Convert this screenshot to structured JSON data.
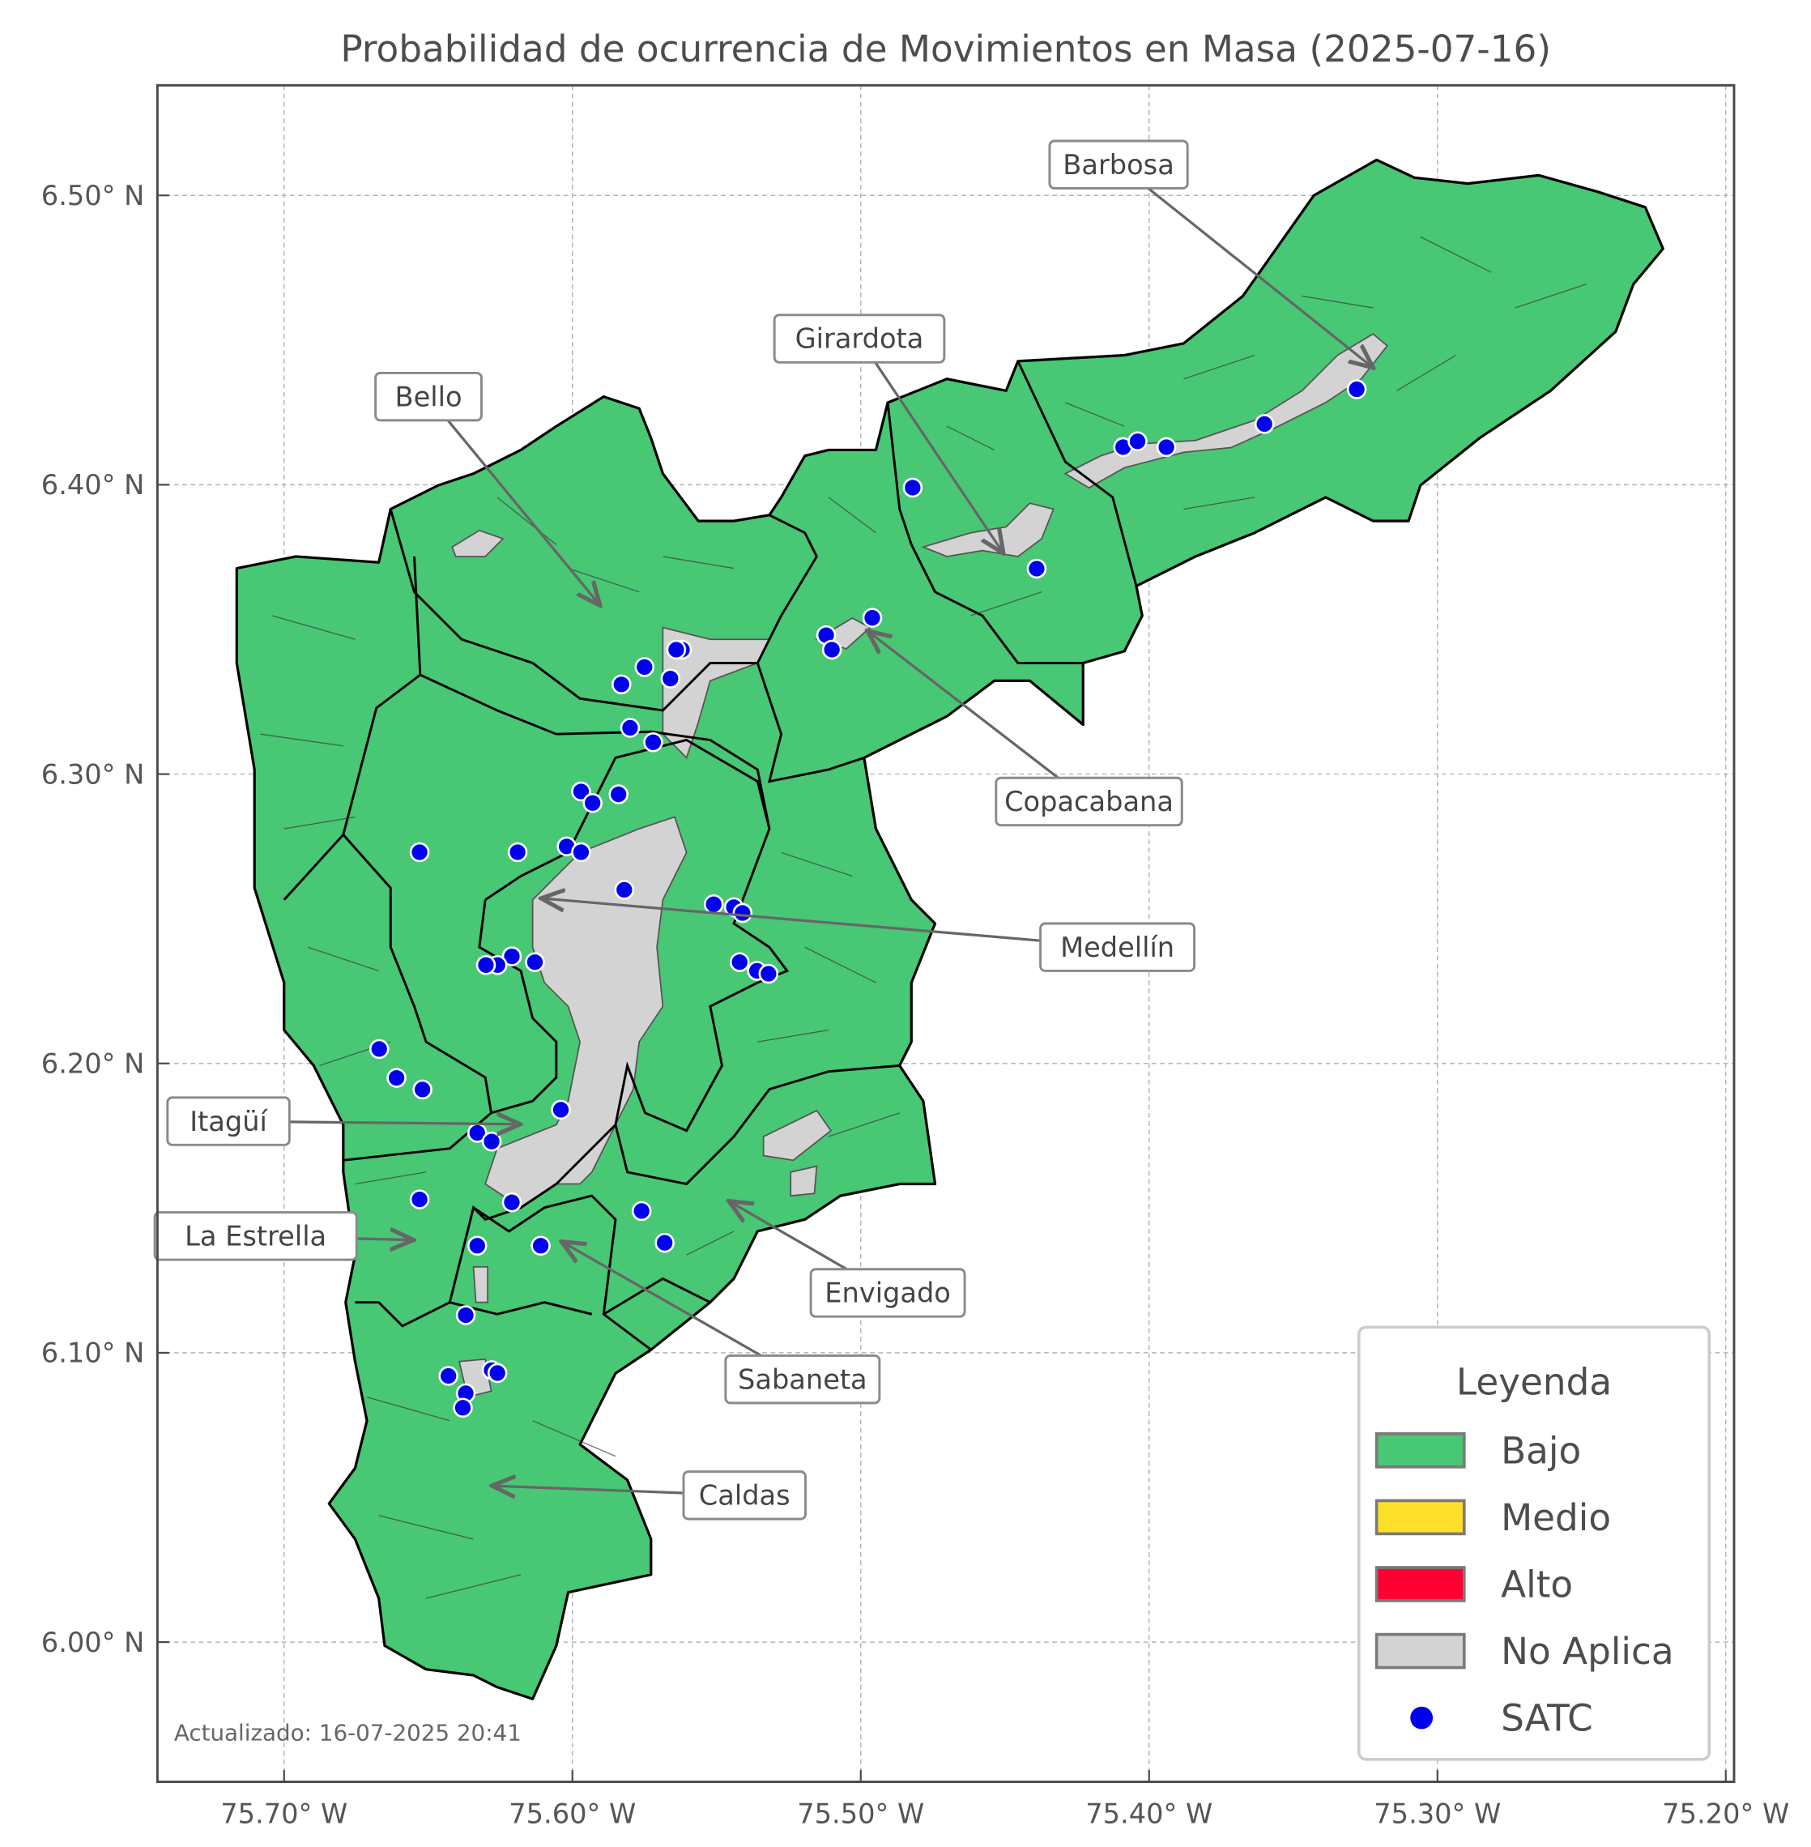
{
  "chart_data": {
    "type": "map",
    "title": "Probabilidad de ocurrencia de Movimientos en Masa (2025-07-16)",
    "xlim": [
      -75.745,
      -75.197
    ],
    "ylim": [
      5.955,
      6.538
    ],
    "grid": true,
    "x_ticks": [
      {
        "value": -75.7,
        "label": "75.70° W"
      },
      {
        "value": -75.6,
        "label": "75.60° W"
      },
      {
        "value": -75.5,
        "label": "75.50° W"
      },
      {
        "value": -75.4,
        "label": "75.40° W"
      },
      {
        "value": -75.3,
        "label": "75.30° W"
      },
      {
        "value": -75.2,
        "label": "75.20° W"
      }
    ],
    "y_ticks": [
      {
        "value": 6.5,
        "label": "6.50° N"
      },
      {
        "value": 6.4,
        "label": "6.40° N"
      },
      {
        "value": 6.3,
        "label": "6.30° N"
      },
      {
        "value": 6.2,
        "label": "6.20° N"
      },
      {
        "value": 6.1,
        "label": "6.10° N"
      },
      {
        "value": 6.0,
        "label": "6.00° N"
      }
    ],
    "legend": {
      "title": "Leyenda",
      "placement": "lower-right",
      "items": [
        {
          "label": "Bajo",
          "color": "#48c774",
          "kind": "patch"
        },
        {
          "label": "Medio",
          "color": "#fde02a",
          "kind": "patch"
        },
        {
          "label": "Alto",
          "color": "#ff0033",
          "kind": "patch"
        },
        {
          "label": "No Aplica",
          "color": "#d3d3d3",
          "kind": "patch"
        },
        {
          "label": "SATC",
          "color": "#0000ee",
          "kind": "point"
        }
      ]
    },
    "region_class": "Bajo",
    "annotations": [
      {
        "label": "Barbosa",
        "lon": -75.323,
        "lat": 6.441
      },
      {
        "label": "Girardota",
        "lon": -75.451,
        "lat": 6.377
      },
      {
        "label": "Bello",
        "lon": -75.591,
        "lat": 6.359
      },
      {
        "label": "Copacabana",
        "lon": -75.497,
        "lat": 6.349
      },
      {
        "label": "Medellín",
        "lon": -75.61,
        "lat": 6.257
      },
      {
        "label": "Itagüí",
        "lon": -75.619,
        "lat": 6.179
      },
      {
        "label": "La Estrella",
        "lon": -75.656,
        "lat": 6.139
      },
      {
        "label": "Envigado",
        "lon": -75.545,
        "lat": 6.152
      },
      {
        "label": "Sabaneta",
        "lon": -75.603,
        "lat": 6.138
      },
      {
        "label": "Caldas",
        "lon": -75.627,
        "lat": 6.054
      }
    ],
    "satc_points": [
      [
        -75.482,
        6.399
      ],
      [
        -75.409,
        6.413
      ],
      [
        -75.404,
        6.415
      ],
      [
        -75.394,
        6.413
      ],
      [
        -75.36,
        6.421
      ],
      [
        -75.328,
        6.433
      ],
      [
        -75.439,
        6.371
      ],
      [
        -75.496,
        6.354
      ],
      [
        -75.512,
        6.348
      ],
      [
        -75.51,
        6.343
      ],
      [
        -75.562,
        6.343
      ],
      [
        -75.564,
        6.343
      ],
      [
        -75.575,
        6.337
      ],
      [
        -75.566,
        6.333
      ],
      [
        -75.583,
        6.331
      ],
      [
        -75.58,
        6.316
      ],
      [
        -75.572,
        6.311
      ],
      [
        -75.597,
        6.294
      ],
      [
        -75.593,
        6.29
      ],
      [
        -75.584,
        6.293
      ],
      [
        -75.653,
        6.273
      ],
      [
        -75.619,
        6.273
      ],
      [
        -75.602,
        6.275
      ],
      [
        -75.597,
        6.273
      ],
      [
        -75.582,
        6.26
      ],
      [
        -75.551,
        6.255
      ],
      [
        -75.544,
        6.254
      ],
      [
        -75.541,
        6.252
      ],
      [
        -75.542,
        6.235
      ],
      [
        -75.536,
        6.232
      ],
      [
        -75.532,
        6.231
      ],
      [
        -75.621,
        6.237
      ],
      [
        -75.626,
        6.234
      ],
      [
        -75.63,
        6.234
      ],
      [
        -75.613,
        6.235
      ],
      [
        -75.667,
        6.205
      ],
      [
        -75.661,
        6.195
      ],
      [
        -75.652,
        6.191
      ],
      [
        -75.604,
        6.184
      ],
      [
        -75.633,
        6.176
      ],
      [
        -75.628,
        6.173
      ],
      [
        -75.653,
        6.153
      ],
      [
        -75.621,
        6.152
      ],
      [
        -75.576,
        6.149
      ],
      [
        -75.568,
        6.138
      ],
      [
        -75.633,
        6.137
      ],
      [
        -75.611,
        6.137
      ],
      [
        -75.637,
        6.113
      ],
      [
        -75.643,
        6.092
      ],
      [
        -75.628,
        6.094
      ],
      [
        -75.626,
        6.093
      ],
      [
        -75.637,
        6.086
      ],
      [
        -75.638,
        6.081
      ]
    ]
  },
  "footnote": "Actualizado: 16-07-2025 20:41"
}
